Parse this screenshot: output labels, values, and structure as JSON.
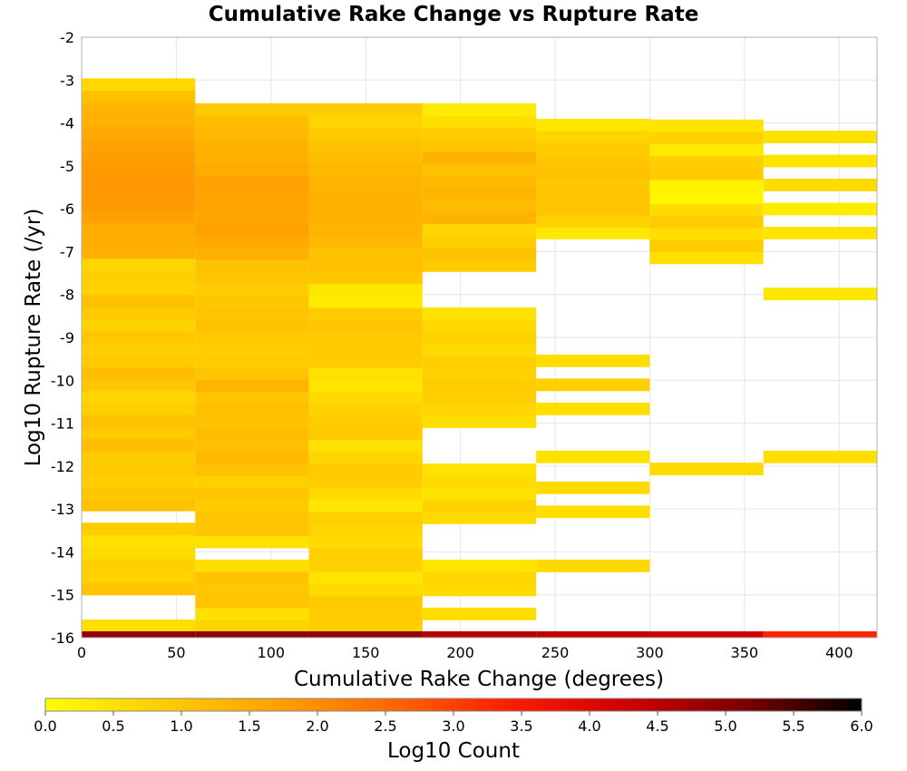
{
  "chart_data": {
    "type": "heatmap",
    "title": "Cumulative Rake Change vs Rupture Rate",
    "xlabel": "Cumulative Rake Change (degrees)",
    "ylabel": "Log10 Rupture Rate (/yr)",
    "xlim": [
      0,
      420
    ],
    "ylim": [
      -16,
      -2
    ],
    "x_ticks": [
      0,
      50,
      100,
      150,
      200,
      250,
      300,
      350,
      400
    ],
    "y_ticks": [
      -2,
      -3,
      -4,
      -5,
      -6,
      -7,
      -8,
      -9,
      -10,
      -11,
      -12,
      -13,
      -14,
      -15,
      -16
    ],
    "grid": true,
    "x_bin_width": 60,
    "y_bin_height": 0.28,
    "colorbar": {
      "label": "Log10 Count",
      "range": [
        0,
        6
      ],
      "ticks": [
        "0.0",
        "0.5",
        "1.0",
        "1.5",
        "2.0",
        "2.5",
        "3.0",
        "3.5",
        "4.0",
        "4.5",
        "5.0",
        "5.5",
        "6.0"
      ],
      "stops": [
        "#ffff00",
        "#ffcc00",
        "#ffa000",
        "#ff6600",
        "#ff1a00",
        "#cc0000",
        "#7a0000",
        "#000000"
      ]
    },
    "columns": [
      {
        "x": 0,
        "bins": [
          [
            -15.86,
            -15.58,
            0.55
          ],
          [
            -15.58,
            -15.0,
            "x"
          ],
          [
            -15.0,
            -14.72,
            1.0
          ],
          [
            -14.72,
            -14.44,
            0.75
          ],
          [
            -14.44,
            -14.16,
            0.8
          ],
          [
            -14.16,
            -13.88,
            0.6
          ],
          [
            -13.88,
            -13.6,
            0.5
          ],
          [
            -13.6,
            -13.32,
            0.85
          ],
          [
            -13.32,
            -13.04,
            "x"
          ],
          [
            -13.04,
            -12.76,
            1.05
          ],
          [
            -12.76,
            -12.48,
            0.95
          ],
          [
            -12.48,
            -12.2,
            0.8
          ],
          [
            -12.2,
            -11.92,
            0.9
          ],
          [
            -11.92,
            -11.64,
            0.85
          ],
          [
            -11.64,
            -11.36,
            1.15
          ],
          [
            -11.36,
            -11.08,
            0.9
          ],
          [
            -11.08,
            -10.8,
            1.05
          ],
          [
            -10.8,
            -10.52,
            0.8
          ],
          [
            -10.52,
            -10.24,
            0.7
          ],
          [
            -10.24,
            -9.96,
            0.95
          ],
          [
            -9.96,
            -9.68,
            1.15
          ],
          [
            -9.68,
            -9.4,
            0.9
          ],
          [
            -9.4,
            -9.12,
            0.8
          ],
          [
            -9.12,
            -8.84,
            0.95
          ],
          [
            -8.84,
            -8.56,
            0.75
          ],
          [
            -8.56,
            -8.28,
            0.9
          ],
          [
            -8.28,
            -8.0,
            1.1
          ],
          [
            -8.0,
            -7.72,
            0.75
          ],
          [
            -7.72,
            -7.44,
            0.8
          ],
          [
            -7.44,
            -7.16,
            0.7
          ],
          [
            -7.16,
            -6.88,
            1.35
          ],
          [
            -6.88,
            -6.6,
            1.45
          ],
          [
            -6.6,
            -6.32,
            1.5
          ],
          [
            -6.32,
            -6.04,
            1.7
          ],
          [
            -6.04,
            -5.76,
            1.8
          ],
          [
            -5.76,
            -5.48,
            1.85
          ],
          [
            -5.48,
            -5.2,
            1.85
          ],
          [
            -5.2,
            -4.92,
            1.8
          ],
          [
            -4.92,
            -4.64,
            1.75
          ],
          [
            -4.64,
            -4.36,
            1.65
          ],
          [
            -4.36,
            -4.08,
            1.55
          ],
          [
            -4.08,
            -3.8,
            1.4
          ],
          [
            -3.8,
            -3.52,
            1.3
          ],
          [
            -3.52,
            -3.24,
            1.1
          ],
          [
            -3.24,
            -2.96,
            0.65
          ]
        ]
      },
      {
        "x": 60,
        "bins": [
          [
            -15.86,
            -15.58,
            0.7
          ],
          [
            -15.58,
            -15.3,
            0.5
          ],
          [
            -15.3,
            -15.02,
            1.0
          ],
          [
            -15.02,
            -14.74,
            0.95
          ],
          [
            -14.74,
            -14.46,
            1.05
          ],
          [
            -14.46,
            -14.18,
            0.55
          ],
          [
            -14.18,
            -13.9,
            "x"
          ],
          [
            -13.9,
            -13.62,
            0.5
          ],
          [
            -13.62,
            -13.34,
            1.0
          ],
          [
            -13.34,
            -13.06,
            1.0
          ],
          [
            -13.06,
            -12.78,
            0.9
          ],
          [
            -12.78,
            -12.5,
            1.0
          ],
          [
            -12.5,
            -12.22,
            0.8
          ],
          [
            -12.22,
            -11.94,
            1.05
          ],
          [
            -11.94,
            -11.66,
            1.2
          ],
          [
            -11.66,
            -11.38,
            1.1
          ],
          [
            -11.38,
            -11.1,
            1.15
          ],
          [
            -11.1,
            -10.82,
            1.05
          ],
          [
            -10.82,
            -10.54,
            1.1
          ],
          [
            -10.54,
            -10.26,
            1.0
          ],
          [
            -10.26,
            -9.98,
            1.3
          ],
          [
            -9.98,
            -9.7,
            1.0
          ],
          [
            -9.7,
            -9.42,
            0.85
          ],
          [
            -9.42,
            -9.14,
            0.8
          ],
          [
            -9.14,
            -8.86,
            0.9
          ],
          [
            -8.86,
            -8.58,
            1.05
          ],
          [
            -8.58,
            -8.3,
            1.0
          ],
          [
            -8.3,
            -8.02,
            0.95
          ],
          [
            -8.02,
            -7.74,
            0.85
          ],
          [
            -7.74,
            -7.46,
            1.0
          ],
          [
            -7.46,
            -7.18,
            1.05
          ],
          [
            -7.18,
            -6.9,
            1.4
          ],
          [
            -6.9,
            -6.62,
            1.55
          ],
          [
            -6.62,
            -6.34,
            1.7
          ],
          [
            -6.34,
            -6.06,
            1.6
          ],
          [
            -6.06,
            -5.78,
            1.65
          ],
          [
            -5.78,
            -5.5,
            1.65
          ],
          [
            -5.5,
            -5.22,
            1.7
          ],
          [
            -5.22,
            -4.94,
            1.5
          ],
          [
            -4.94,
            -4.66,
            1.4
          ],
          [
            -4.66,
            -4.38,
            1.35
          ],
          [
            -4.38,
            -4.1,
            1.2
          ],
          [
            -4.1,
            -3.82,
            1.15
          ],
          [
            -3.82,
            -3.54,
            0.9
          ]
        ]
      },
      {
        "x": 120,
        "bins": [
          [
            -15.86,
            -15.58,
            0.8
          ],
          [
            -15.58,
            -15.3,
            0.85
          ],
          [
            -15.3,
            -15.02,
            0.9
          ],
          [
            -15.02,
            -14.74,
            0.6
          ],
          [
            -14.74,
            -14.46,
            0.45
          ],
          [
            -14.46,
            -14.18,
            0.75
          ],
          [
            -14.18,
            -13.9,
            0.8
          ],
          [
            -13.9,
            -13.62,
            0.6
          ],
          [
            -13.62,
            -13.34,
            0.7
          ],
          [
            -13.34,
            -13.06,
            0.8
          ],
          [
            -13.06,
            -12.78,
            0.4
          ],
          [
            -12.78,
            -12.5,
            0.6
          ],
          [
            -12.5,
            -12.22,
            0.85
          ],
          [
            -12.22,
            -11.94,
            0.9
          ],
          [
            -11.94,
            -11.66,
            0.7
          ],
          [
            -11.66,
            -11.38,
            0.5
          ],
          [
            -11.38,
            -11.1,
            0.9
          ],
          [
            -11.1,
            -10.82,
            0.85
          ],
          [
            -10.82,
            -10.54,
            0.75
          ],
          [
            -10.54,
            -10.26,
            0.6
          ],
          [
            -10.26,
            -9.98,
            0.45
          ],
          [
            -9.98,
            -9.7,
            0.5
          ],
          [
            -9.7,
            -9.42,
            0.85
          ],
          [
            -9.42,
            -9.14,
            0.9
          ],
          [
            -9.14,
            -8.86,
            0.9
          ],
          [
            -8.86,
            -8.58,
            1.0
          ],
          [
            -8.58,
            -8.3,
            0.85
          ],
          [
            -8.3,
            -8.02,
            0.35
          ],
          [
            -8.02,
            -7.74,
            0.4
          ],
          [
            -7.74,
            -7.46,
            0.95
          ],
          [
            -7.46,
            -7.18,
            1.1
          ],
          [
            -7.18,
            -6.9,
            1.05
          ],
          [
            -6.9,
            -6.62,
            1.25
          ],
          [
            -6.62,
            -6.34,
            1.3
          ],
          [
            -6.34,
            -6.06,
            1.35
          ],
          [
            -6.06,
            -5.78,
            1.4
          ],
          [
            -5.78,
            -5.5,
            1.35
          ],
          [
            -5.5,
            -5.22,
            1.3
          ],
          [
            -5.22,
            -4.94,
            1.25
          ],
          [
            -4.94,
            -4.66,
            1.15
          ],
          [
            -4.66,
            -4.38,
            1.05
          ],
          [
            -4.38,
            -4.1,
            0.9
          ],
          [
            -4.1,
            -3.82,
            0.7
          ],
          [
            -3.82,
            -3.54,
            0.85
          ]
        ]
      },
      {
        "x": 180,
        "bins": [
          [
            -15.58,
            -15.3,
            0.55
          ],
          [
            -15.3,
            -15.02,
            "x"
          ],
          [
            -15.02,
            -14.74,
            0.6
          ],
          [
            -14.74,
            -14.46,
            0.7
          ],
          [
            -14.46,
            -14.18,
            0.45
          ],
          [
            -14.18,
            -13.9,
            "x"
          ],
          [
            -13.9,
            -13.62,
            "x"
          ],
          [
            -13.62,
            -13.34,
            "x"
          ],
          [
            -13.34,
            -13.06,
            0.6
          ],
          [
            -13.06,
            -12.78,
            0.75
          ],
          [
            -12.78,
            -12.5,
            0.5
          ],
          [
            -12.5,
            -12.22,
            0.6
          ],
          [
            -12.22,
            -11.94,
            0.45
          ],
          [
            -11.94,
            -11.66,
            "x"
          ],
          [
            -11.66,
            -11.38,
            "x"
          ],
          [
            -11.38,
            -11.1,
            "x"
          ],
          [
            -11.1,
            -10.82,
            0.55
          ],
          [
            -10.82,
            -10.54,
            0.7
          ],
          [
            -10.54,
            -10.26,
            0.8
          ],
          [
            -10.26,
            -9.98,
            0.85
          ],
          [
            -9.98,
            -9.7,
            0.75
          ],
          [
            -9.7,
            -9.42,
            0.8
          ],
          [
            -9.42,
            -9.14,
            0.6
          ],
          [
            -9.14,
            -8.86,
            0.75
          ],
          [
            -8.86,
            -8.58,
            0.65
          ],
          [
            -8.58,
            -8.3,
            0.5
          ],
          [
            -8.3,
            -8.02,
            "x"
          ],
          [
            -8.02,
            -7.74,
            "x"
          ],
          [
            -7.74,
            -7.46,
            "x"
          ],
          [
            -7.46,
            -7.18,
            0.9
          ],
          [
            -7.18,
            -6.9,
            1.05
          ],
          [
            -6.9,
            -6.62,
            0.8
          ],
          [
            -6.62,
            -6.34,
            0.7
          ],
          [
            -6.34,
            -6.06,
            1.35
          ],
          [
            -6.06,
            -5.78,
            1.15
          ],
          [
            -5.78,
            -5.5,
            1.3
          ],
          [
            -5.5,
            -5.22,
            1.2
          ],
          [
            -5.22,
            -4.94,
            1.1
          ],
          [
            -4.94,
            -4.66,
            1.35
          ],
          [
            -4.66,
            -4.38,
            1.0
          ],
          [
            -4.38,
            -4.1,
            0.85
          ],
          [
            -4.1,
            -3.82,
            0.55
          ],
          [
            -3.82,
            -3.54,
            0.35
          ]
        ]
      },
      {
        "x": 240,
        "bins": [
          [
            -14.46,
            -14.18,
            0.65
          ],
          [
            -13.2,
            -12.92,
            0.55
          ],
          [
            -12.64,
            -12.36,
            0.6
          ],
          [
            -11.92,
            -11.64,
            0.5
          ],
          [
            -10.8,
            -10.52,
            0.55
          ],
          [
            -10.24,
            -9.96,
            0.8
          ],
          [
            -9.68,
            -9.4,
            0.55
          ],
          [
            -6.7,
            -6.42,
            0.4
          ],
          [
            -6.42,
            -6.14,
            0.75
          ],
          [
            -6.14,
            -5.86,
            1.0
          ],
          [
            -5.86,
            -5.58,
            1.0
          ],
          [
            -5.58,
            -5.3,
            0.95
          ],
          [
            -5.3,
            -5.02,
            1.1
          ],
          [
            -5.02,
            -4.74,
            0.95
          ],
          [
            -4.74,
            -4.46,
            0.9
          ],
          [
            -4.46,
            -4.18,
            0.7
          ],
          [
            -4.18,
            -3.9,
            0.4
          ]
        ]
      },
      {
        "x": 300,
        "bins": [
          [
            -12.2,
            -11.92,
            0.6
          ],
          [
            -7.28,
            -7.0,
            0.5
          ],
          [
            -7.0,
            -6.72,
            0.85
          ],
          [
            -6.72,
            -6.44,
            0.55
          ],
          [
            -6.44,
            -6.16,
            0.85
          ],
          [
            -6.16,
            -5.88,
            0.6
          ],
          [
            -5.88,
            -5.6,
            0.15
          ],
          [
            -5.6,
            -5.32,
            0.2
          ],
          [
            -5.32,
            -5.04,
            0.9
          ],
          [
            -5.04,
            -4.76,
            0.8
          ],
          [
            -4.76,
            -4.48,
            0.35
          ],
          [
            -4.48,
            -4.2,
            0.75
          ],
          [
            -4.2,
            -3.92,
            0.45
          ]
        ]
      },
      {
        "x": 360,
        "bins": [
          [
            -11.92,
            -11.64,
            0.55
          ],
          [
            -8.12,
            -7.84,
            0.4
          ],
          [
            -6.7,
            -6.42,
            0.45
          ],
          [
            -6.14,
            -5.86,
            0.3
          ],
          [
            -5.58,
            -5.3,
            0.6
          ],
          [
            -5.02,
            -4.74,
            0.45
          ],
          [
            -4.46,
            -4.18,
            0.5
          ]
        ]
      }
    ],
    "bottom_bins": [
      {
        "x": 0,
        "value": 4.9
      },
      {
        "x": 60,
        "value": 4.9
      },
      {
        "x": 120,
        "value": 4.9
      },
      {
        "x": 180,
        "value": 4.5
      },
      {
        "x": 240,
        "value": 4.4
      },
      {
        "x": 300,
        "value": 4.2
      },
      {
        "x": 360,
        "value": 3.3
      }
    ]
  }
}
